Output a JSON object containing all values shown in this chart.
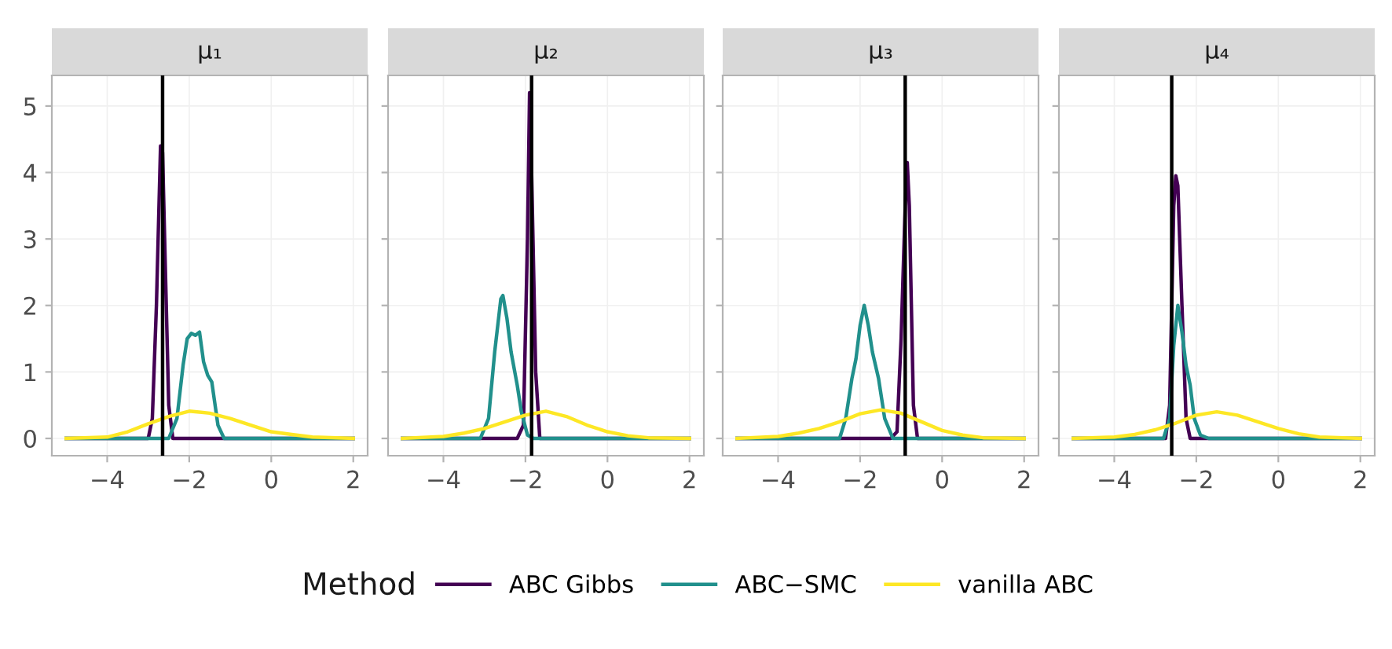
{
  "chart_data": [
    {
      "type": "line",
      "title": "μ₁",
      "legend": "bottom",
      "legend_title": "Method",
      "grid": true,
      "xlim": [
        -5.35,
        2.35
      ],
      "ylim": [
        -0.26,
        5.46
      ],
      "xticks": [
        -4,
        -2,
        0,
        2
      ],
      "yticks": [
        0,
        1,
        2,
        3,
        4,
        5
      ],
      "ref_lines": [
        {
          "axis": "x",
          "value": -2.65,
          "color": "#000000"
        }
      ],
      "series": [
        {
          "name": "ABC Gibbs",
          "color": "#440154",
          "x": [
            -5,
            -3.0,
            -2.9,
            -2.8,
            -2.7,
            -2.65,
            -2.6,
            -2.5,
            -2.4,
            2
          ],
          "values": [
            0,
            0,
            0.3,
            2.0,
            4.4,
            4.3,
            3.0,
            0.5,
            0,
            0
          ]
        },
        {
          "name": "ABC−SMC",
          "color": "#21908c",
          "x": [
            -5,
            -2.5,
            -2.3,
            -2.15,
            -2.05,
            -1.95,
            -1.85,
            -1.75,
            -1.65,
            -1.55,
            -1.45,
            -1.3,
            -1.15,
            2
          ],
          "values": [
            0,
            0,
            0.3,
            1.1,
            1.5,
            1.58,
            1.55,
            1.6,
            1.15,
            0.95,
            0.85,
            0.2,
            0,
            0
          ]
        },
        {
          "name": "vanilla ABC",
          "color": "#fde725",
          "x": [
            -5,
            -4,
            -3.5,
            -3,
            -2.5,
            -2,
            -1.5,
            -1,
            -0.5,
            0,
            0.5,
            1,
            2
          ],
          "values": [
            0,
            0.02,
            0.1,
            0.22,
            0.33,
            0.41,
            0.38,
            0.3,
            0.2,
            0.1,
            0.06,
            0.02,
            0
          ]
        }
      ]
    },
    {
      "type": "line",
      "title": "μ₂",
      "tick_labels": "x",
      "grid": true,
      "xlim": [
        -5.35,
        2.35
      ],
      "ylim": [
        -0.26,
        5.46
      ],
      "xticks": [
        -4,
        -2,
        0,
        2
      ],
      "yticks": [
        0,
        1,
        2,
        3,
        4,
        5
      ],
      "ref_lines": [
        {
          "axis": "x",
          "value": -1.85,
          "color": "#000000"
        }
      ],
      "series": [
        {
          "color": "#440154",
          "x": [
            -5,
            -2.2,
            -2.05,
            -1.95,
            -1.9,
            -1.85,
            -1.75,
            -1.65,
            2
          ],
          "values": [
            0,
            0,
            0.2,
            3,
            5.2,
            4,
            1,
            0,
            0
          ]
        },
        {
          "color": "#21908c",
          "x": [
            -5,
            -3.1,
            -2.9,
            -2.75,
            -2.6,
            -2.55,
            -2.45,
            -2.35,
            -2.2,
            -2.1,
            -1.95,
            -1.8,
            2
          ],
          "values": [
            0,
            0,
            0.3,
            1.3,
            2.1,
            2.15,
            1.8,
            1.3,
            0.8,
            0.4,
            0.05,
            0,
            0
          ]
        },
        {
          "color": "#fde725",
          "x": [
            -5,
            -4,
            -3.5,
            -3,
            -2.5,
            -2,
            -1.5,
            -1,
            -0.5,
            0,
            0.5,
            1,
            2
          ],
          "values": [
            0,
            0.03,
            0.08,
            0.15,
            0.25,
            0.35,
            0.41,
            0.33,
            0.2,
            0.1,
            0.04,
            0.01,
            0
          ]
        }
      ]
    },
    {
      "type": "line",
      "title": "μ₃",
      "tick_labels": "x",
      "grid": true,
      "xlim": [
        -5.35,
        2.35
      ],
      "ylim": [
        -0.26,
        5.46
      ],
      "xticks": [
        -4,
        -2,
        0,
        2
      ],
      "yticks": [
        0,
        1,
        2,
        3,
        4,
        5
      ],
      "ref_lines": [
        {
          "axis": "x",
          "value": -0.9,
          "color": "#000000"
        }
      ],
      "series": [
        {
          "color": "#440154",
          "x": [
            -5,
            -1.25,
            -1.1,
            -1.0,
            -0.9,
            -0.85,
            -0.8,
            -0.7,
            -0.6,
            2
          ],
          "values": [
            0,
            0,
            0.1,
            1.5,
            3.5,
            4.15,
            3.5,
            0.5,
            0,
            0
          ]
        },
        {
          "color": "#21908c",
          "x": [
            -5,
            -2.5,
            -2.35,
            -2.2,
            -2.1,
            -2.0,
            -1.9,
            -1.8,
            -1.7,
            -1.55,
            -1.4,
            -1.2,
            2
          ],
          "values": [
            0,
            0,
            0.3,
            0.9,
            1.2,
            1.7,
            2.0,
            1.7,
            1.3,
            0.9,
            0.3,
            0,
            0
          ]
        },
        {
          "color": "#fde725",
          "x": [
            -5,
            -4,
            -3.5,
            -3,
            -2.5,
            -2,
            -1.5,
            -1,
            -0.5,
            0,
            0.5,
            1,
            2
          ],
          "values": [
            0,
            0.03,
            0.08,
            0.15,
            0.25,
            0.37,
            0.43,
            0.38,
            0.25,
            0.12,
            0.05,
            0.01,
            0
          ]
        }
      ]
    },
    {
      "type": "line",
      "title": "μ₄",
      "tick_labels": "x",
      "grid": true,
      "xlim": [
        -5.35,
        2.35
      ],
      "ylim": [
        -0.26,
        5.46
      ],
      "xticks": [
        -4,
        -2,
        0,
        2
      ],
      "yticks": [
        0,
        1,
        2,
        3,
        4,
        5
      ],
      "ref_lines": [
        {
          "axis": "x",
          "value": -2.6,
          "color": "#000000"
        }
      ],
      "series": [
        {
          "color": "#440154",
          "x": [
            -5,
            -2.75,
            -2.65,
            -2.55,
            -2.5,
            -2.45,
            -2.35,
            -2.25,
            -2.15,
            2
          ],
          "values": [
            0,
            0,
            0.5,
            3.5,
            3.95,
            3.8,
            2.0,
            0.3,
            0,
            0
          ]
        },
        {
          "color": "#21908c",
          "x": [
            -5,
            -2.8,
            -2.65,
            -2.55,
            -2.45,
            -2.35,
            -2.25,
            -2.15,
            -2.05,
            -1.9,
            -1.7,
            2
          ],
          "values": [
            0,
            0,
            0.3,
            1.4,
            2.0,
            1.6,
            1.1,
            0.8,
            0.3,
            0.05,
            0,
            0
          ]
        },
        {
          "color": "#fde725",
          "x": [
            -5,
            -4,
            -3.5,
            -3,
            -2.5,
            -2,
            -1.5,
            -1,
            -0.5,
            0,
            0.5,
            1,
            2
          ],
          "values": [
            0,
            0.02,
            0.06,
            0.13,
            0.23,
            0.35,
            0.4,
            0.35,
            0.25,
            0.15,
            0.07,
            0.02,
            0
          ]
        }
      ]
    }
  ]
}
